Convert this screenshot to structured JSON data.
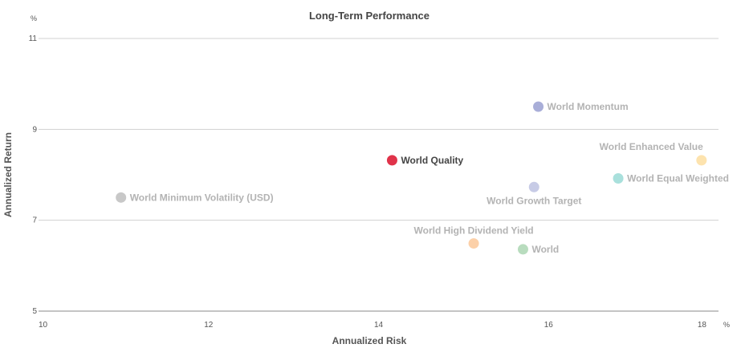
{
  "chart_data": {
    "type": "scatter",
    "title": "Long-Term Performance",
    "xlabel": "Annualized Risk",
    "ylabel": "Annualized Return",
    "x_unit": "%",
    "y_unit": "%",
    "xlim": [
      10,
      18
    ],
    "ylim": [
      5,
      11
    ],
    "xticks": [
      10,
      12,
      14,
      16,
      18
    ],
    "yticks": [
      5,
      7,
      9,
      11
    ],
    "grid": "horizontal",
    "legend": "none (points labeled directly)",
    "series": [
      {
        "name": "World Momentum",
        "x": 15.88,
        "y": 9.5,
        "color": "#a9aed8",
        "label_color": "#b3b3b3",
        "highlight": false,
        "label_pos": "right"
      },
      {
        "name": "World Quality",
        "x": 14.16,
        "y": 8.32,
        "color": "#e0334a",
        "label_color": "#444444",
        "highlight": true,
        "label_pos": "right"
      },
      {
        "name": "World Enhanced Value",
        "x": 17.8,
        "y": 8.32,
        "color": "#fde3ae",
        "label_color": "#b3b3b3",
        "highlight": false,
        "label_pos": "above-left"
      },
      {
        "name": "World Equal Weighted",
        "x": 16.82,
        "y": 7.92,
        "color": "#a9e0dc",
        "label_color": "#b3b3b3",
        "highlight": false,
        "label_pos": "right"
      },
      {
        "name": "World Growth Target",
        "x": 15.83,
        "y": 7.73,
        "color": "#c7cbe6",
        "label_color": "#b3b3b3",
        "highlight": false,
        "label_pos": "below"
      },
      {
        "name": "World Minimum Volatility (USD)",
        "x": 10.97,
        "y": 7.5,
        "color": "#c8c8c8",
        "label_color": "#b3b3b3",
        "highlight": false,
        "label_pos": "right"
      },
      {
        "name": "World High Dividend Yield",
        "x": 15.12,
        "y": 6.49,
        "color": "#fcd0a8",
        "label_color": "#b3b3b3",
        "highlight": false,
        "label_pos": "above"
      },
      {
        "name": "World",
        "x": 15.7,
        "y": 6.36,
        "color": "#b8dcbe",
        "label_color": "#b3b3b3",
        "highlight": false,
        "label_pos": "right"
      }
    ]
  }
}
